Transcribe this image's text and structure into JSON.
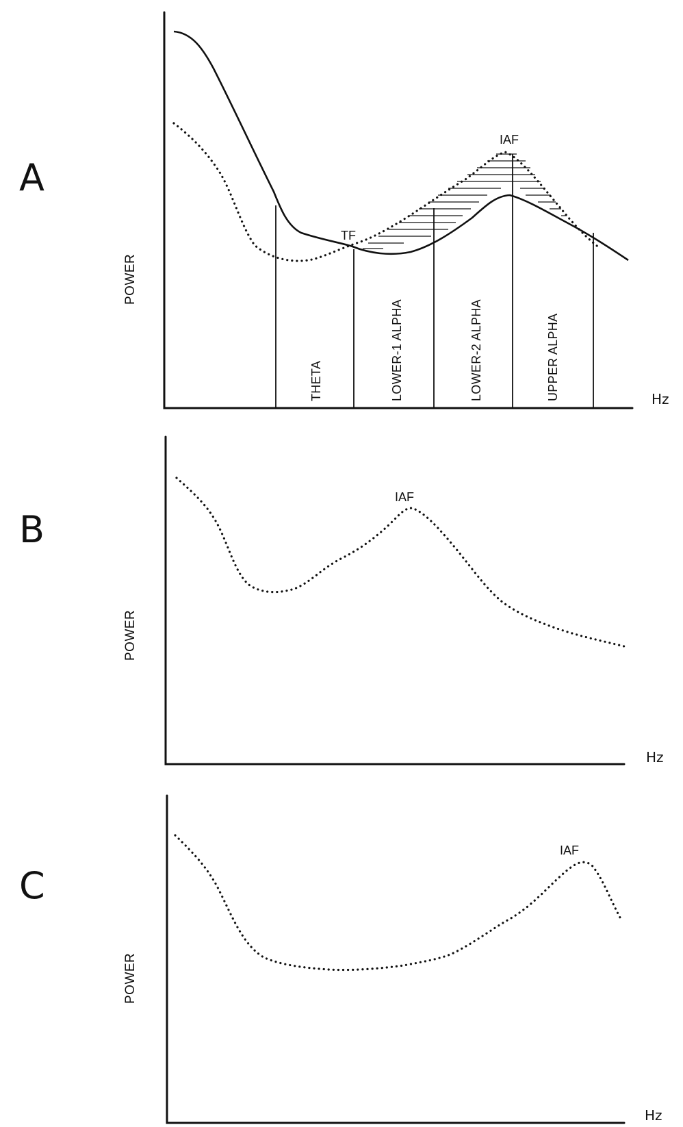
{
  "panels": [
    {
      "letter": "A",
      "y_label": "POWER",
      "x_label": "Hz",
      "annotations": {
        "tf": "TF",
        "iaf": "IAF"
      },
      "bands": [
        "THETA",
        "LOWER-1 ALPHA",
        "LOWER-2 ALPHA",
        "UPPER ALPHA"
      ],
      "curves": {
        "solid": "solid line",
        "dotted": "dotted line"
      }
    },
    {
      "letter": "B",
      "y_label": "POWER",
      "x_label": "Hz",
      "annotations": {
        "iaf": "IAF"
      }
    },
    {
      "letter": "C",
      "y_label": "POWER",
      "x_label": "Hz",
      "annotations": {
        "iaf": "IAF"
      }
    }
  ]
}
